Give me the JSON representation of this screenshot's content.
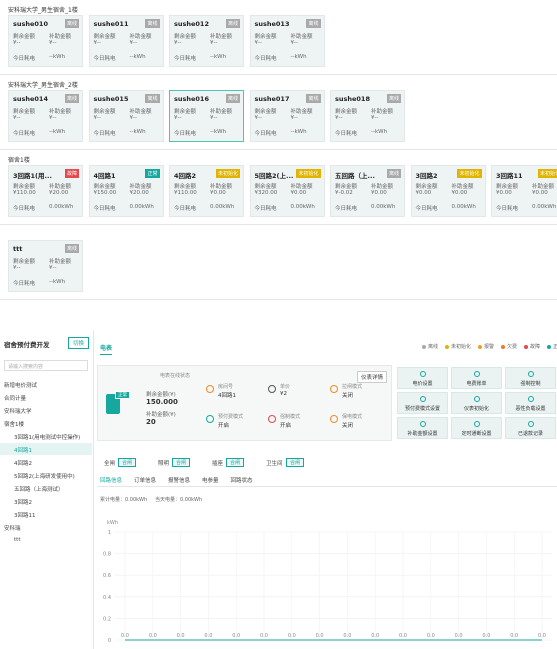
{
  "groups": [
    {
      "title": "安科瑞大学_男生宿舍_1楼",
      "cards": [
        {
          "name": "sushe010",
          "status": "离线",
          "status_color": "#a9a9a9",
          "remain_label": "剩余金额",
          "remain": "¥--",
          "subsidy_label": "补助金额",
          "subsidy": "¥--",
          "today_label": "今日耗电",
          "today": "--kWh"
        },
        {
          "name": "sushe011",
          "status": "离线",
          "status_color": "#a9a9a9",
          "remain_label": "剩余金额",
          "remain": "¥--",
          "subsidy_label": "补助金额",
          "subsidy": "¥--",
          "today_label": "今日耗电",
          "today": "--kWh"
        },
        {
          "name": "sushe012",
          "status": "离线",
          "status_color": "#a9a9a9",
          "remain_label": "剩余金额",
          "remain": "¥--",
          "subsidy_label": "补助金额",
          "subsidy": "¥--",
          "today_label": "今日耗电",
          "today": "--kWh"
        },
        {
          "name": "sushe013",
          "status": "离线",
          "status_color": "#a9a9a9",
          "remain_label": "剩余金额",
          "remain": "¥--",
          "subsidy_label": "补助金额",
          "subsidy": "¥--",
          "today_label": "今日耗电",
          "today": "--kWh"
        }
      ]
    },
    {
      "title": "安科瑞大学_男生宿舍_2楼",
      "cards": [
        {
          "name": "sushe014",
          "status": "离线",
          "status_color": "#a9a9a9",
          "remain_label": "剩余金额",
          "remain": "¥--",
          "subsidy_label": "补助金额",
          "subsidy": "¥--",
          "today_label": "今日耗电",
          "today": "--kWh"
        },
        {
          "name": "sushe015",
          "status": "离线",
          "status_color": "#a9a9a9",
          "remain_label": "剩余金额",
          "remain": "¥--",
          "subsidy_label": "补助金额",
          "subsidy": "¥--",
          "today_label": "今日耗电",
          "today": "--kWh"
        },
        {
          "name": "sushe016",
          "status": "离线",
          "status_color": "#a9a9a9",
          "selected": true,
          "remain_label": "剩余金额",
          "remain": "¥--",
          "subsidy_label": "补助金额",
          "subsidy": "¥--",
          "today_label": "今日耗电",
          "today": "--kWh"
        },
        {
          "name": "sushe017",
          "status": "离线",
          "status_color": "#a9a9a9",
          "remain_label": "剩余金额",
          "remain": "¥--",
          "subsidy_label": "补助金额",
          "subsidy": "¥--",
          "today_label": "今日耗电",
          "today": "--kWh"
        },
        {
          "name": "sushe018",
          "status": "离线",
          "status_color": "#a9a9a9",
          "remain_label": "剩余金额",
          "remain": "¥--",
          "subsidy_label": "补助金额",
          "subsidy": "¥--",
          "today_label": "今日耗电",
          "today": "--kWh"
        }
      ]
    },
    {
      "title": "宿舍1楼",
      "cards": [
        {
          "name": "3回路1(用...",
          "status": "故障",
          "status_color": "#e5484d",
          "remain_label": "剩余金额",
          "remain": "¥110.00",
          "subsidy_label": "补助金额",
          "subsidy": "¥20.00",
          "today_label": "今日耗电",
          "today": "0.00kWh"
        },
        {
          "name": "4回路1",
          "status": "正常",
          "status_color": "#16a89e",
          "remain_label": "剩余金额",
          "remain": "¥150.00",
          "subsidy_label": "补助金额",
          "subsidy": "¥20.00",
          "today_label": "今日耗电",
          "today": "0.00kWh"
        },
        {
          "name": "4回路2",
          "status": "未初始化",
          "status_color": "#e0b400",
          "remain_label": "剩余金额",
          "remain": "¥110.00",
          "subsidy_label": "补助金额",
          "subsidy": "¥0.00",
          "today_label": "今日耗电",
          "today": "0.00kWh"
        },
        {
          "name": "5回路2(上...",
          "status": "未初始化",
          "status_color": "#e0b400",
          "remain_label": "剩余金额",
          "remain": "¥320.00",
          "subsidy_label": "补助金额",
          "subsidy": "¥0.00",
          "today_label": "今日耗电",
          "today": "0.00kWh"
        },
        {
          "name": "五回路（上...",
          "status": "离线",
          "status_color": "#a9a9a9",
          "remain_label": "剩余金额",
          "remain": "¥-0.02",
          "subsidy_label": "补助金额",
          "subsidy": "¥0.00",
          "today_label": "今日耗电",
          "today": "0.00kWh"
        },
        {
          "name": "3回路2",
          "status": "未初始化",
          "status_color": "#e0b400",
          "remain_label": "剩余金额",
          "remain": "¥0.00",
          "subsidy_label": "补助金额",
          "subsidy": "¥0.00",
          "today_label": "今日耗电",
          "today": "0.00kWh"
        },
        {
          "name": "3回路11",
          "status": "未初始化",
          "status_color": "#e0b400",
          "remain_label": "剩余金额",
          "remain": "¥0.00",
          "subsidy_label": "补助金额",
          "subsidy": "¥0.00",
          "today_label": "今日耗电",
          "today": "0.00kWh"
        }
      ]
    },
    {
      "cards": [
        {
          "name": "ttt",
          "status": "离线",
          "status_color": "#a9a9a9",
          "remain_label": "剩余金额",
          "remain": "¥--",
          "subsidy_label": "补助金额",
          "subsidy": "¥--",
          "today_label": "今日耗电",
          "today": "--kWh"
        }
      ]
    }
  ],
  "sidebar": {
    "title": "宿舍预付费开发",
    "switch": "切换",
    "search_placeholder": "请输入搜索内容",
    "tree": [
      {
        "label": "新增电价测试"
      },
      {
        "label": "合同计量"
      },
      {
        "label": "安科瑞大学"
      },
      {
        "label": "宿舍1楼",
        "children": [
          {
            "label": "3回路1(用电测试中控操作)"
          },
          {
            "label": "4回路1",
            "selected": true
          },
          {
            "label": "4回路2"
          },
          {
            "label": "5回路2(上海研发使用中)"
          },
          {
            "label": "五回路（上海测试）"
          },
          {
            "label": "3回路2"
          },
          {
            "label": "3回路11"
          }
        ]
      },
      {
        "label": "安科瑞",
        "children": [
          {
            "label": "ttt"
          }
        ]
      }
    ]
  },
  "detail": {
    "tab": "电表",
    "legend": [
      {
        "name": "离线",
        "color": "#a9a9a9"
      },
      {
        "name": "未初始化",
        "color": "#e0b400"
      },
      {
        "name": "报警",
        "color": "#f0a020"
      },
      {
        "name": "欠费",
        "color": "#f07a20"
      },
      {
        "name": "故障",
        "color": "#e5484d"
      },
      {
        "name": "正常",
        "color": "#16a89e"
      }
    ],
    "status": "正常",
    "online_label": "电表在线状态",
    "remain_label": "剩余金额(¥)",
    "remain": "150.000",
    "subsidy_label": "补助金额(¥)",
    "subsidy": "20",
    "detail_button": "仪表详情",
    "info": [
      {
        "label": "房间号",
        "value": "4回路1"
      },
      {
        "label": "单价",
        "value": "¥2"
      },
      {
        "label": "拉闸模式",
        "value": "关闭"
      },
      {
        "label": "预付费模式",
        "value": "开启"
      },
      {
        "label": "强制模式",
        "value": "开启"
      },
      {
        "label": "保电模式",
        "value": "关闭"
      }
    ],
    "actions": [
      "电价设置",
      "电费账单",
      "强制控制",
      "预付费模式设置",
      "仪表初始化",
      "恶性负载设置",
      "补助金额设置",
      "定时通断设置",
      "已退款记录"
    ],
    "switches": [
      {
        "label": "全闸",
        "state": "合闸"
      },
      {
        "label": "照明",
        "state": "合闸"
      },
      {
        "label": "插座",
        "state": "合闸"
      },
      {
        "label": "卫生间",
        "state": "合闸"
      }
    ],
    "tabs": [
      "回路信息",
      "订单信息",
      "报警信息",
      "电参量",
      "回路状态"
    ],
    "total_energy": "累计电量：0.00kWh",
    "today_energy": "当天电量：0.00kWh"
  },
  "chart": {
    "type": "line",
    "y_label": "kWh",
    "color": "#16a89e",
    "ylim": [
      0,
      1
    ],
    "yticks": [
      0,
      0.2,
      0.4,
      0.6,
      0.8,
      1
    ],
    "values": [
      0,
      0,
      0,
      0,
      0,
      0,
      0,
      0,
      0,
      0,
      0,
      0,
      0,
      0,
      0,
      0
    ],
    "value_labels": [
      "0.0",
      "0.0",
      "0.0",
      "0.0",
      "0.0",
      "0.0",
      "0.0",
      "0.0",
      "0.0",
      "0.0",
      "0.0",
      "0.0",
      "0.0",
      "0.0",
      "0.0",
      "0.0"
    ]
  }
}
